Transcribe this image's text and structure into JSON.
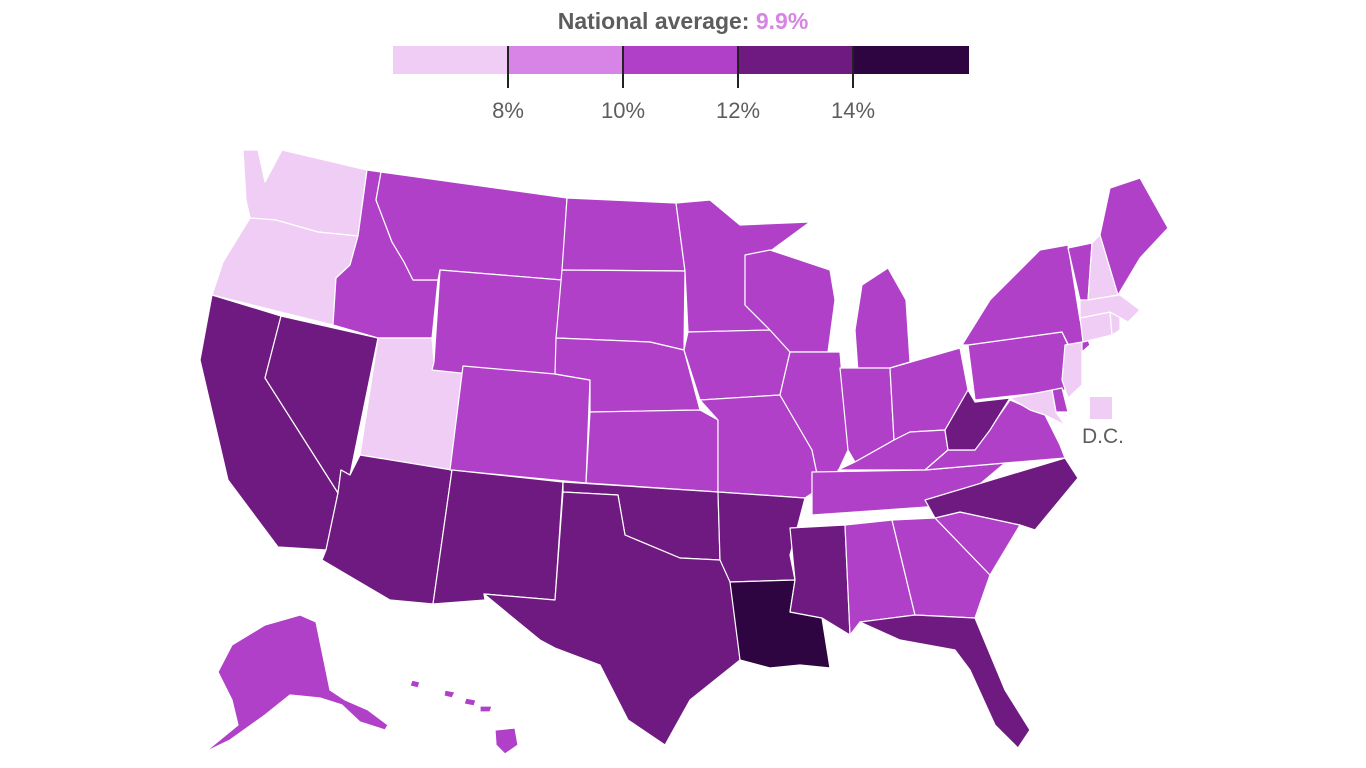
{
  "header": {
    "label": "National average:",
    "value": "9.9%"
  },
  "legend": {
    "colors": [
      "#f0cdf4",
      "#d884e6",
      "#b040c8",
      "#6f1a80",
      "#2e0540"
    ],
    "ticks": [
      "8%",
      "10%",
      "12%",
      "14%"
    ]
  },
  "dc_label": "D.C.",
  "states": {
    "WA": 4,
    "OR": 1,
    "CA": 12,
    "NV": 13,
    "ID": 10,
    "UT": 7,
    "AZ": 12,
    "MT": 11,
    "WY": 11,
    "CO": 10,
    "NM": 12,
    "ND": 10,
    "SD": 10,
    "NE": 10,
    "KS": 10,
    "OK": 13,
    "TX": 12,
    "MN": 10,
    "IA": 10,
    "MO": 10,
    "AR": 13,
    "LA": 15,
    "WI": 10,
    "IL": 10,
    "MI": 10,
    "IN": 10,
    "OH": 10,
    "KY": 11,
    "TN": 11,
    "MS": 13,
    "AL": 11,
    "GA": 11,
    "FL": 13,
    "SC": 11,
    "NC": 13,
    "VA": 10,
    "WV": 13,
    "PA": 10,
    "NY": 10,
    "NJ": 7,
    "DE": 10,
    "MD": 7,
    "CT": 7,
    "RI": 7,
    "MA": 7,
    "VT": 10,
    "NH": 7,
    "ME": 10,
    "AK": 10,
    "HI": 11,
    "DC": 7
  }
}
